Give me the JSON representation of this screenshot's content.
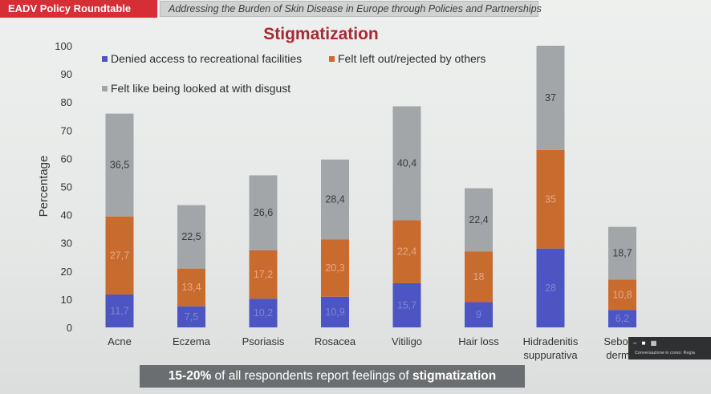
{
  "header": {
    "tag_label": "EADV Policy Roundtable",
    "subtitle": "Addressing the Burden of Skin Disease in Europe through Policies and Partnerships"
  },
  "footer": {
    "highlight": "15-20%",
    "middle": " of all respondents report feelings of ",
    "emphasis": "stigmatization"
  },
  "overlay": {
    "controls": "– ■ ▦",
    "caption": "Conversazione in corso: Regia"
  },
  "colors": {
    "series1": "#4c55c1",
    "series2": "#c86b2f",
    "series3": "#a3a6a9",
    "title": "#a62a31"
  },
  "chart_data": {
    "type": "bar",
    "stacked": true,
    "title": "Stigmatization",
    "xlabel": "",
    "ylabel": "Percentage",
    "ylim": [
      0,
      100
    ],
    "yticks": [
      0,
      10,
      20,
      30,
      40,
      50,
      60,
      70,
      80,
      90,
      100
    ],
    "grid": false,
    "legend_position": "top-left",
    "categories": [
      [
        "Acne"
      ],
      [
        "Eczema"
      ],
      [
        "Psoriasis"
      ],
      [
        "Rosacea"
      ],
      [
        "Vitiligo"
      ],
      [
        "Hair loss"
      ],
      [
        "Hidradenitis",
        "suppurativa"
      ],
      [
        "Seborrh",
        "dermat"
      ]
    ],
    "series": [
      {
        "name": "Denied access to recreational facilities",
        "values": [
          11.7,
          7.5,
          10.2,
          10.9,
          15.7,
          9,
          28,
          6.2
        ],
        "labels": [
          "11,7",
          "7,5",
          "10,2",
          "10,9",
          "15,7",
          "9",
          "28",
          "6,2"
        ]
      },
      {
        "name": "Felt left out/rejected by others",
        "values": [
          27.7,
          13.4,
          17.2,
          20.3,
          22.4,
          18,
          35,
          10.8
        ],
        "labels": [
          "27,7",
          "13,4",
          "17,2",
          "20,3",
          "22,4",
          "18",
          "35",
          "10,8"
        ]
      },
      {
        "name": "Felt like being looked at with disgust",
        "values": [
          36.5,
          22.5,
          26.6,
          28.4,
          40.4,
          22.4,
          37,
          18.7
        ],
        "labels": [
          "36,5",
          "22,5",
          "26,6",
          "28,4",
          "40,4",
          "22,4",
          "37",
          "18,7"
        ]
      }
    ]
  }
}
